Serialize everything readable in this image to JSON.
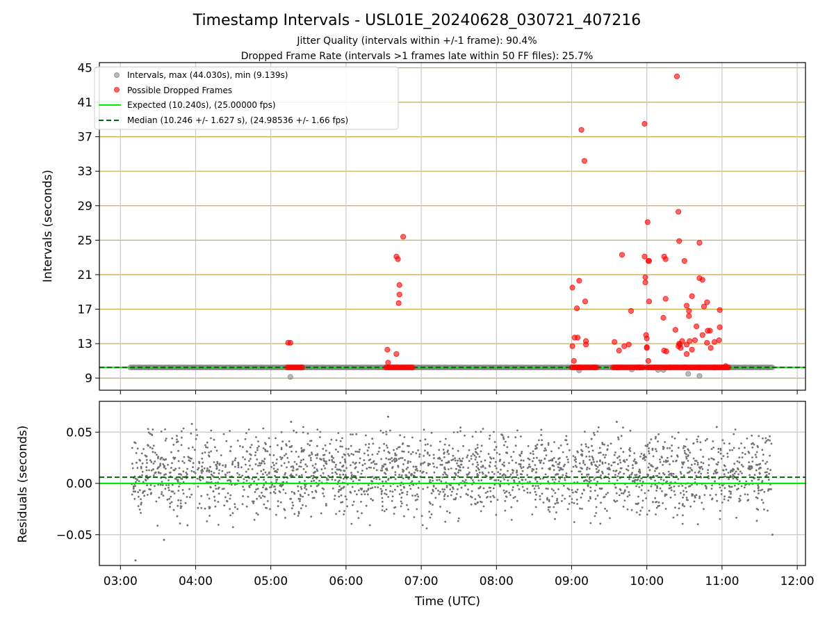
{
  "figure": {
    "title": "Timestamp Intervals - USL01E_20240628_030721_407216",
    "subtitle_1": "Jitter Quality (intervals within +/-1 frame): 90.4%",
    "subtitle_2": "Dropped Frame Rate (intervals >1 frames late within 50 FF files): 25.7%"
  },
  "colors": {
    "intervals": "#808080",
    "dropped": "#ff0000",
    "expected": "#00ee00",
    "median": "#006400",
    "grid_top": "#c8a64a",
    "grid_vertical": "#c8c8c8",
    "residuals": "#707070"
  },
  "chart_data": [
    {
      "type": "scatter",
      "panel": "intervals",
      "ylabel": "Intervals (seconds)",
      "xlabel": "",
      "xlim": [
        2.72,
        12.11
      ],
      "ylim": [
        7.6,
        45.6
      ],
      "xticks": [
        3,
        4,
        5,
        6,
        7,
        8,
        9,
        10,
        11,
        12
      ],
      "xtick_labels": [
        "03:00",
        "04:00",
        "05:00",
        "06:00",
        "07:00",
        "08:00",
        "09:00",
        "10:00",
        "11:00",
        "12:00"
      ],
      "yticks": [
        9,
        13,
        17,
        21,
        25,
        29,
        33,
        37,
        41,
        45
      ],
      "ytick_labels": [
        "9",
        "13",
        "17",
        "21",
        "25",
        "29",
        "33",
        "37",
        "41",
        "45"
      ],
      "grid": "on",
      "legend": {
        "placement": "upper-left",
        "entries": [
          "Intervals, max (44.030s), min (9.139s)",
          "Possible Dropped Frames",
          "Expected (10.240s), (25.00000 fps)",
          "Median (10.246 +/- 1.627 s), (24.98536 +/- 1.66 fps)"
        ]
      },
      "expected_line": 10.24,
      "median_line": 10.246,
      "normal_band": {
        "x_start": 3.13,
        "x_end": 11.67,
        "y": 10.24
      },
      "dropped_bands": [
        {
          "x_start": 5.22,
          "x_end": 5.42,
          "y": 10.24
        },
        {
          "x_start": 6.53,
          "x_end": 6.9,
          "y": 10.24
        },
        {
          "x_start": 9.0,
          "x_end": 9.35,
          "y": 10.24
        },
        {
          "x_start": 9.55,
          "x_end": 9.95,
          "y": 10.24
        },
        {
          "x_start": 10.0,
          "x_end": 11.1,
          "y": 10.24
        }
      ],
      "series": [
        {
          "name": "Intervals, max (44.030s), min (9.139s)",
          "points": [
            [
              5.26,
              9.14
            ],
            [
              9.1,
              9.9
            ],
            [
              10.22,
              9.95
            ],
            [
              10.55,
              9.5
            ],
            [
              10.7,
              9.25
            ],
            [
              10.15,
              9.95
            ],
            [
              9.8,
              10.0
            ]
          ]
        },
        {
          "name": "Possible Dropped Frames",
          "points": [
            [
              5.23,
              13.1
            ],
            [
              5.26,
              13.1
            ],
            [
              6.55,
              12.3
            ],
            [
              6.56,
              10.8
            ],
            [
              6.67,
              11.8
            ],
            [
              6.67,
              23.1
            ],
            [
              6.69,
              22.8
            ],
            [
              6.7,
              17.7
            ],
            [
              6.71,
              18.7
            ],
            [
              6.71,
              19.8
            ],
            [
              6.76,
              25.4
            ],
            [
              9.01,
              19.5
            ],
            [
              9.01,
              12.7
            ],
            [
              9.03,
              11.0
            ],
            [
              9.04,
              13.7
            ],
            [
              9.07,
              17.1
            ],
            [
              9.08,
              13.7
            ],
            [
              9.1,
              20.3
            ],
            [
              9.13,
              37.8
            ],
            [
              9.17,
              34.2
            ],
            [
              9.18,
              17.9
            ],
            [
              9.19,
              12.9
            ],
            [
              9.19,
              13.3
            ],
            [
              9.57,
              13.2
            ],
            [
              9.63,
              12.2
            ],
            [
              9.67,
              23.3
            ],
            [
              9.7,
              12.7
            ],
            [
              9.76,
              12.9
            ],
            [
              9.79,
              16.8
            ],
            [
              9.97,
              38.5
            ],
            [
              9.97,
              23.1
            ],
            [
              9.98,
              20.7
            ],
            [
              9.98,
              20.1
            ],
            [
              9.99,
              14.0
            ],
            [
              10.0,
              12.5
            ],
            [
              10.0,
              12.6
            ],
            [
              10.0,
              13.6
            ],
            [
              10.01,
              27.1
            ],
            [
              10.02,
              11.0
            ],
            [
              10.02,
              22.6
            ],
            [
              10.03,
              22.6
            ],
            [
              10.03,
              17.9
            ],
            [
              10.22,
              16.0
            ],
            [
              10.23,
              12.2
            ],
            [
              10.23,
              23.1
            ],
            [
              10.25,
              22.8
            ],
            [
              10.25,
              18.2
            ],
            [
              10.26,
              12.1
            ],
            [
              10.4,
              44.0
            ],
            [
              10.38,
              14.6
            ],
            [
              10.42,
              28.3
            ],
            [
              10.42,
              12.7
            ],
            [
              10.43,
              13.0
            ],
            [
              10.43,
              24.9
            ],
            [
              10.44,
              12.9
            ],
            [
              10.45,
              12.5
            ],
            [
              10.47,
              13.3
            ],
            [
              10.5,
              22.6
            ],
            [
              10.53,
              17.4
            ],
            [
              10.53,
              12.9
            ],
            [
              10.56,
              16.8
            ],
            [
              10.56,
              16.2
            ],
            [
              10.57,
              13.3
            ],
            [
              10.6,
              12.3
            ],
            [
              10.64,
              13.4
            ],
            [
              10.66,
              15.0
            ],
            [
              10.7,
              24.7
            ],
            [
              10.7,
              20.6
            ],
            [
              10.74,
              20.4
            ],
            [
              10.74,
              14.0
            ],
            [
              10.76,
              17.3
            ],
            [
              10.8,
              17.8
            ],
            [
              10.8,
              13.1
            ],
            [
              10.81,
              14.5
            ],
            [
              10.84,
              14.5
            ],
            [
              10.85,
              12.5
            ],
            [
              10.9,
              13.2
            ],
            [
              10.96,
              13.4
            ],
            [
              10.97,
              14.9
            ],
            [
              10.97,
              16.9
            ],
            [
              10.6,
              18.5
            ],
            [
              10.53,
              11.8
            ],
            [
              9.1,
              10.24
            ],
            [
              9.3,
              10.24
            ],
            [
              9.6,
              10.24
            ],
            [
              9.9,
              10.24
            ],
            [
              10.1,
              10.24
            ],
            [
              10.3,
              10.24
            ],
            [
              10.5,
              10.24
            ],
            [
              10.7,
              10.24
            ],
            [
              10.9,
              10.24
            ],
            [
              11.05,
              10.4
            ]
          ]
        }
      ]
    },
    {
      "type": "scatter",
      "panel": "residuals",
      "ylabel": "Residuals (seconds)",
      "xlabel": "Time (UTC)",
      "xlim": [
        2.72,
        12.11
      ],
      "ylim": [
        -0.08,
        0.08
      ],
      "yticks": [
        -0.05,
        0.0,
        0.05
      ],
      "ytick_labels": [
        "−0.05",
        "0.00",
        "0.05"
      ],
      "grid": "on",
      "expected_line": 0.0,
      "median_line": 0.006,
      "residuals_summary": {
        "x_start": 3.15,
        "x_end": 11.67,
        "center": 0.01,
        "spread": 0.025,
        "point_count": 2400
      },
      "series": [
        {
          "name": "",
          "points": [
            [
              3.2,
              -0.075
            ],
            [
              3.58,
              -0.055
            ],
            [
              5.27,
              0.06
            ],
            [
              6.56,
              0.065
            ],
            [
              11.67,
              -0.05
            ],
            [
              9.6,
              0.06
            ],
            [
              10.93,
              0.055
            ],
            [
              3.95,
              0.058
            ]
          ]
        }
      ]
    }
  ]
}
